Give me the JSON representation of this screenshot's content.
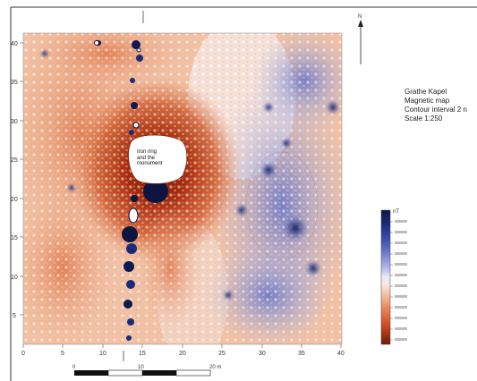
{
  "title_block": {
    "site": "Grathe Kapel",
    "map_type": "Magnetic map",
    "contour": "Contour interval 2 n",
    "scale": "Scale 1:250"
  },
  "map_label": {
    "line1": "Iron ring",
    "line2": "and the",
    "line3": "monument"
  },
  "north_arrow": {
    "label": "N"
  },
  "axes": {
    "y_ticks": [
      "5",
      "10",
      "15",
      "20",
      "25",
      "30",
      "35",
      "40"
    ],
    "x_ticks": [
      "0",
      "5",
      "10",
      "15",
      "20",
      "25",
      "30",
      "35",
      "40"
    ]
  },
  "colorbar": {
    "unit": "nT",
    "labels": [
      "",
      "",
      "",
      "",
      "",
      "",
      "",
      "",
      "",
      "",
      "",
      ""
    ],
    "colors": [
      "#0b1540",
      "#1a2a7a",
      "#3d4fae",
      "#7c86cf",
      "#b9bfe8",
      "#ecebf6",
      "#f6e6dc",
      "#f0b08e",
      "#e4784c",
      "#cc4a22",
      "#a82e10",
      "#6e1a06"
    ]
  },
  "scale_bar": {
    "labels": [
      "0",
      "10",
      "20 m"
    ]
  }
}
